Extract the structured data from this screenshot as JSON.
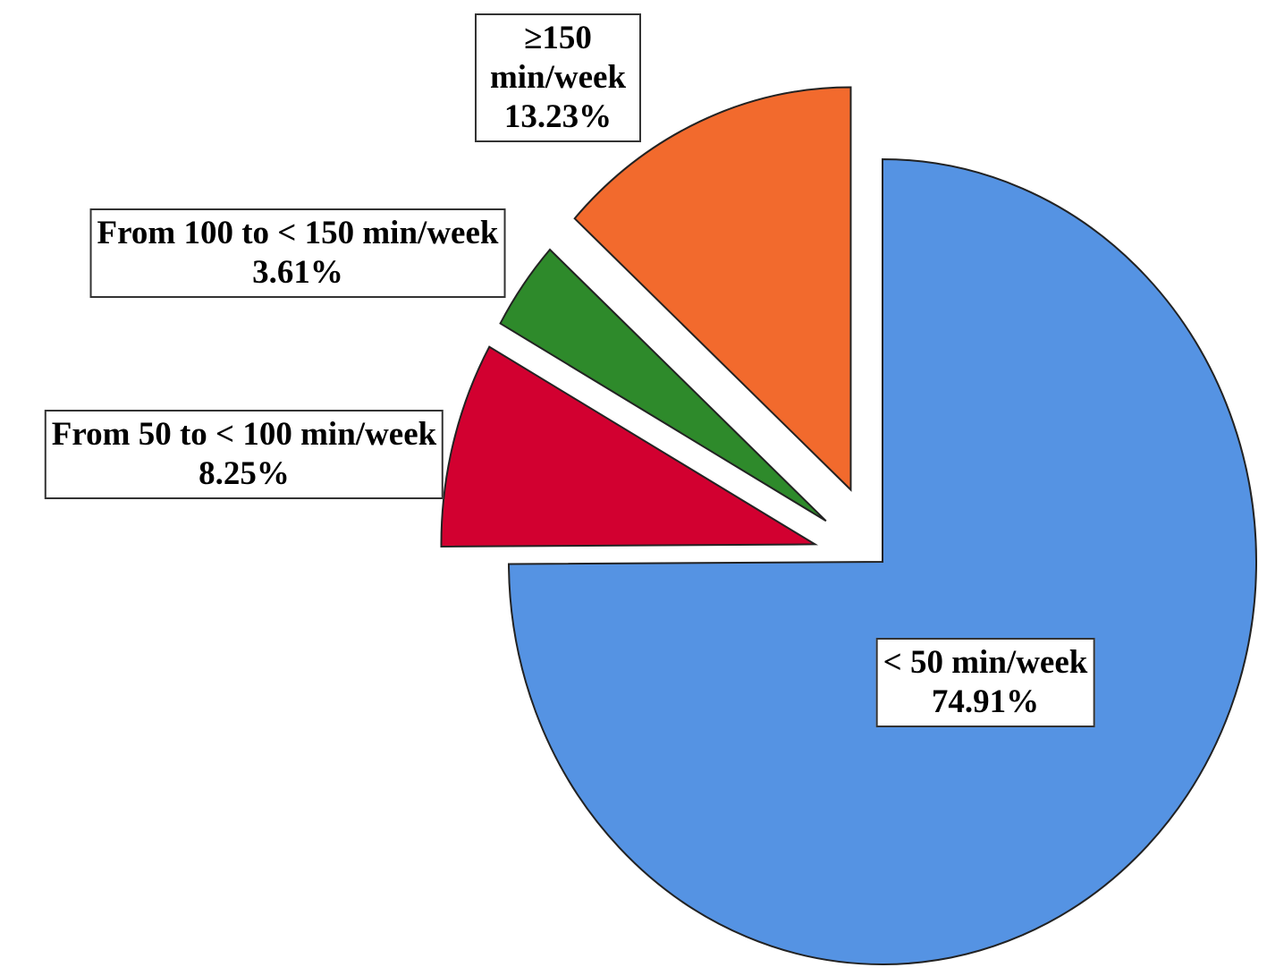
{
  "chart_data": {
    "type": "pie",
    "categories": [
      "< 50 min/week",
      "From 50 to < 100 min/week",
      "From 100 to < 150 min/week",
      "≥150 min/week"
    ],
    "values": [
      74.91,
      8.25,
      3.61,
      13.23
    ],
    "value_labels": [
      "74.91%",
      "8.25%",
      "3.61%",
      "13.23%"
    ],
    "colors": [
      "#5593e3",
      "#d20030",
      "#2e8a2b",
      "#f26a2d"
    ]
  }
}
